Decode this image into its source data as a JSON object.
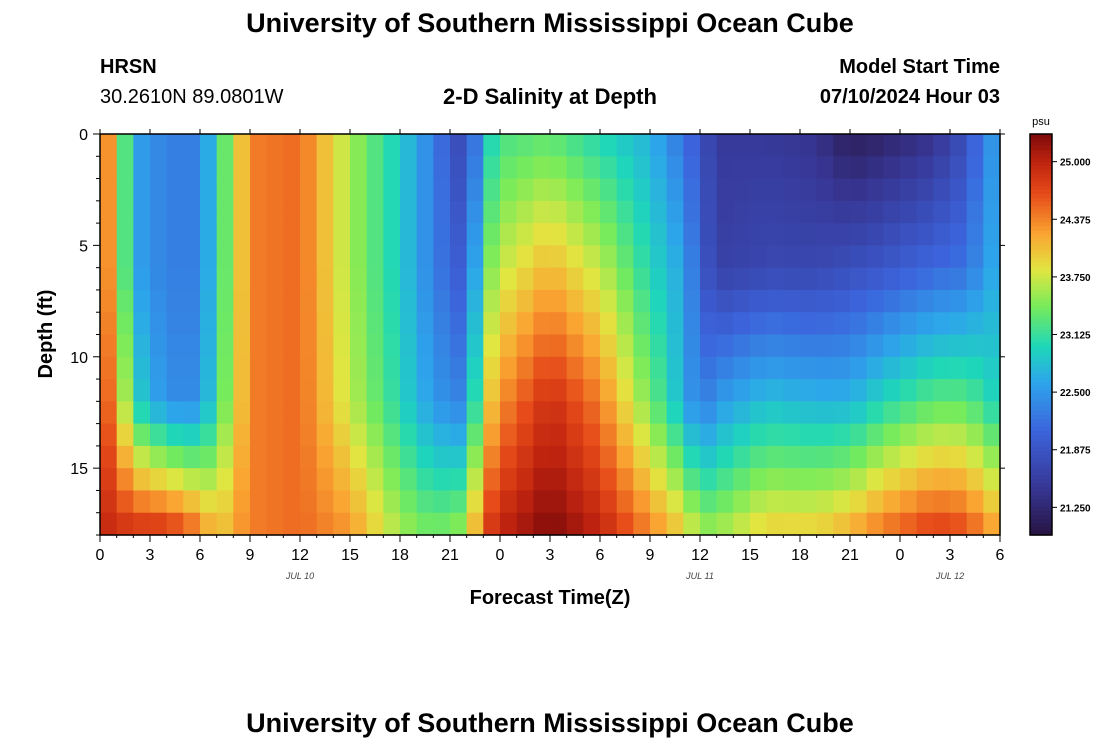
{
  "header": {
    "title": "University of Southern Mississippi Ocean Cube",
    "station": "HRSN",
    "coordinates": "30.2610N  89.0801W",
    "subtitle": "2-D Salinity at Depth",
    "model_start_label": "Model Start Time",
    "model_start_value": "07/10/2024 Hour 03"
  },
  "footer": {
    "title": "University of Southern Mississippi Ocean Cube"
  },
  "chart_data": {
    "type": "heatmap",
    "title": "2-D Salinity at Depth",
    "xlabel": "Forecast Time(Z)",
    "ylabel": "Depth (ft)",
    "x_hours_range": [
      0,
      54
    ],
    "y_range_ft": [
      0,
      18
    ],
    "x_ticks": [
      {
        "hour": 0,
        "label": "0"
      },
      {
        "hour": 3,
        "label": "3"
      },
      {
        "hour": 6,
        "label": "6"
      },
      {
        "hour": 9,
        "label": "9"
      },
      {
        "hour": 12,
        "label": "12"
      },
      {
        "hour": 15,
        "label": "15"
      },
      {
        "hour": 18,
        "label": "18"
      },
      {
        "hour": 21,
        "label": "21"
      },
      {
        "hour": 24,
        "label": "0"
      },
      {
        "hour": 27,
        "label": "3"
      },
      {
        "hour": 30,
        "label": "6"
      },
      {
        "hour": 33,
        "label": "9"
      },
      {
        "hour": 36,
        "label": "12"
      },
      {
        "hour": 39,
        "label": "15"
      },
      {
        "hour": 42,
        "label": "18"
      },
      {
        "hour": 45,
        "label": "21"
      },
      {
        "hour": 48,
        "label": "0"
      },
      {
        "hour": 51,
        "label": "3"
      },
      {
        "hour": 54,
        "label": "6"
      }
    ],
    "date_labels": [
      {
        "hour": 12,
        "label": "JUL 10"
      },
      {
        "hour": 36,
        "label": "JUL 11"
      },
      {
        "hour": 51,
        "label": "JUL 12"
      }
    ],
    "y_ticks": [
      {
        "value": 0,
        "label": "0"
      },
      {
        "value": 5,
        "label": "5"
      },
      {
        "value": 10,
        "label": "10"
      },
      {
        "value": 15,
        "label": "15"
      }
    ],
    "colorbar": {
      "units": "psu",
      "range": [
        20.95,
        25.3
      ],
      "tick_values": [
        25.0,
        24.375,
        23.75,
        23.125,
        22.5,
        21.875,
        21.25
      ],
      "tick_labels": [
        "25.000",
        "24.375",
        "23.750",
        "23.125",
        "22.500",
        "21.875",
        "21.250"
      ]
    },
    "depth_levels_ft": [
      0,
      6,
      12,
      18
    ],
    "time_hours": [
      0,
      1,
      2,
      4,
      6,
      7,
      9,
      12,
      15,
      18,
      20,
      22,
      23,
      24,
      27,
      30,
      33,
      35,
      36,
      37,
      40,
      43,
      45,
      47,
      50,
      52,
      53,
      54
    ],
    "salinity_psu": [
      [
        24.7,
        24.7,
        24.8,
        25.0
      ],
      [
        23.9,
        23.9,
        24.2,
        24.9
      ],
      [
        22.6,
        22.6,
        23.0,
        24.9
      ],
      [
        22.3,
        22.3,
        22.4,
        24.9
      ],
      [
        22.3,
        22.3,
        22.4,
        24.5
      ],
      [
        23.0,
        23.0,
        23.1,
        24.0
      ],
      [
        24.4,
        24.4,
        24.4,
        24.4
      ],
      [
        24.5,
        24.5,
        24.5,
        24.5
      ],
      [
        23.6,
        23.6,
        23.7,
        24.3
      ],
      [
        22.9,
        22.9,
        23.0,
        23.6
      ],
      [
        22.3,
        22.3,
        22.5,
        23.4
      ],
      [
        21.6,
        21.9,
        22.3,
        23.6
      ],
      [
        22.8,
        23.3,
        23.8,
        24.7
      ],
      [
        23.2,
        23.7,
        24.3,
        25.0
      ],
      [
        23.3,
        24.1,
        24.9,
        25.3
      ],
      [
        23.0,
        23.7,
        24.4,
        25.0
      ],
      [
        22.7,
        23.0,
        23.4,
        24.4
      ],
      [
        22.2,
        22.6,
        22.7,
        24.0
      ],
      [
        21.9,
        22.0,
        22.2,
        23.6
      ],
      [
        21.5,
        21.6,
        22.5,
        23.6
      ],
      [
        21.5,
        21.7,
        22.8,
        24.0
      ],
      [
        21.4,
        21.7,
        22.7,
        24.0
      ],
      [
        21.1,
        21.8,
        22.7,
        24.2
      ],
      [
        21.2,
        21.9,
        23.0,
        24.5
      ],
      [
        21.4,
        22.1,
        23.3,
        24.8
      ],
      [
        21.8,
        22.2,
        23.3,
        24.7
      ],
      [
        22.3,
        22.5,
        23.1,
        24.4
      ],
      [
        22.6,
        22.7,
        22.9,
        24.2
      ]
    ]
  }
}
